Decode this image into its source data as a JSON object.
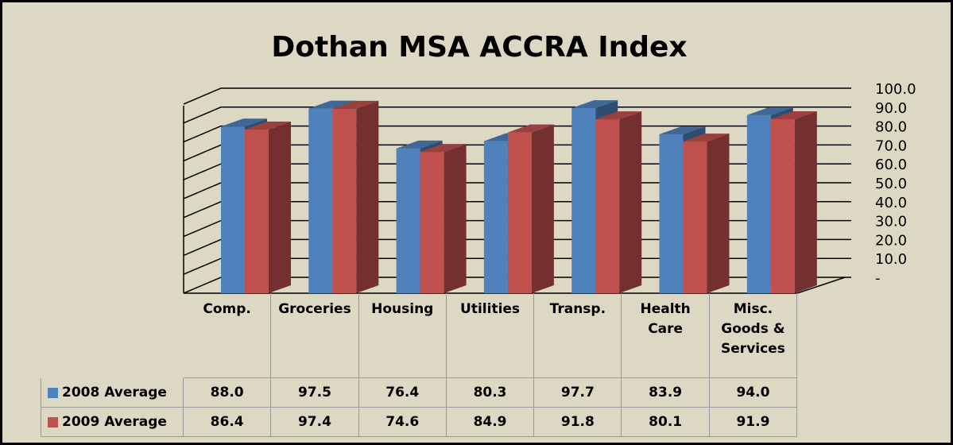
{
  "chart_data": {
    "type": "bar3d",
    "title": "Dothan MSA ACCRA Index",
    "categories": [
      "Comp.",
      "Groceries",
      "Housing",
      "Utilities",
      "Transp.",
      "Health Care",
      "Misc. Goods & Services"
    ],
    "series": [
      {
        "name": "2008 Average",
        "color": "#4f81bd",
        "values": [
          88.0,
          97.5,
          76.4,
          80.3,
          97.7,
          83.9,
          94.0
        ],
        "value_labels": [
          "88.0",
          "97.5",
          "76.4",
          "80.3",
          "97.7",
          "83.9",
          "94.0"
        ]
      },
      {
        "name": "2009 Average",
        "color": "#c0504d",
        "values": [
          86.4,
          97.4,
          74.6,
          84.9,
          91.8,
          80.1,
          91.9
        ],
        "value_labels": [
          "86.4",
          "97.4",
          "74.6",
          "84.9",
          "91.8",
          "80.1",
          "91.9"
        ]
      }
    ],
    "ylim": [
      0,
      100
    ],
    "yticks": [
      {
        "value": 0,
        "label": "-"
      },
      {
        "value": 10,
        "label": "10.0"
      },
      {
        "value": 20,
        "label": "20.0"
      },
      {
        "value": 30,
        "label": "30.0"
      },
      {
        "value": 40,
        "label": "40.0"
      },
      {
        "value": 50,
        "label": "50.0"
      },
      {
        "value": 60,
        "label": "60.0"
      },
      {
        "value": 70,
        "label": "70.0"
      },
      {
        "value": 80,
        "label": "80.0"
      },
      {
        "value": 90,
        "label": "90.0"
      },
      {
        "value": 100,
        "label": "100.0"
      }
    ],
    "grid": true
  }
}
